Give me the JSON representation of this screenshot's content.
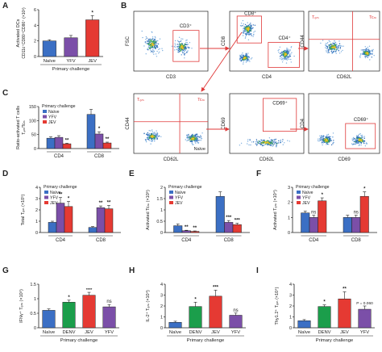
{
  "colors": {
    "naive": "#3b6fc4",
    "yfv": "#7b4fa8",
    "jev": "#e53a33",
    "denv": "#1b9e4b",
    "gate": "#e03a3a",
    "arrow": "#e03a3a"
  },
  "chart_data": [
    {
      "panel": "A",
      "type": "bar",
      "ylabel": "Activated DCs",
      "ylabel2": "CD11c⁺CD80⁺CD86⁺ (×10³)",
      "xlabel": "Primary challenge",
      "categories": [
        "Naïve",
        "YFV",
        "JEV"
      ],
      "values": [
        2.0,
        2.4,
        4.7
      ],
      "errors": [
        0.15,
        0.3,
        0.55
      ],
      "colors": [
        "#3b6fc4",
        "#7b4fa8",
        "#e53a33"
      ],
      "significance": [
        "",
        "",
        "*"
      ],
      "ylim": [
        0,
        6
      ],
      "yticks": [
        0,
        2,
        4,
        6
      ]
    },
    {
      "panel": "C",
      "type": "bar",
      "ylabel": "Ratio-activated T cells",
      "ylabel2": "Tₑₘ/Tcₘ",
      "legend_title": "Primary challenge",
      "legend_labels": [
        "Naïve",
        "YFV",
        "JEV"
      ],
      "categories": [
        "CD4",
        "CD8"
      ],
      "series": [
        {
          "name": "Naïve",
          "values": [
            37,
            122
          ],
          "errors": [
            5,
            18
          ]
        },
        {
          "name": "YFV",
          "values": [
            40,
            52
          ],
          "errors": [
            6,
            8
          ]
        },
        {
          "name": "JEV",
          "values": [
            17,
            20
          ],
          "errors": [
            2,
            3
          ]
        }
      ],
      "significance": [
        [
          "",
          "",
          "**"
        ],
        [
          "",
          "*",
          "**"
        ]
      ],
      "ylim": [
        0,
        150
      ],
      "yticks": [
        0,
        50,
        100,
        150
      ]
    },
    {
      "panel": "D",
      "type": "bar",
      "ylabel": "Total Tₑₘ (×10⁵)",
      "legend_title": "Primary challenge",
      "legend_labels": [
        "Naïve",
        "YFV",
        "JEV"
      ],
      "categories": [
        "CD4",
        "CD8"
      ],
      "series": [
        {
          "name": "Naïve",
          "values": [
            0.9,
            0.45
          ],
          "errors": [
            0.1,
            0.08
          ]
        },
        {
          "name": "YFV",
          "values": [
            2.6,
            2.2
          ],
          "errors": [
            0.5,
            0.15
          ]
        },
        {
          "name": "JEV",
          "values": [
            2.3,
            2.1
          ],
          "errors": [
            0.45,
            0.3
          ]
        }
      ],
      "significance": [
        [
          "",
          "**",
          "*"
        ],
        [
          "",
          "**",
          "**"
        ]
      ],
      "ylim": [
        0,
        4
      ],
      "yticks": [
        0,
        1,
        2,
        3,
        4
      ]
    },
    {
      "panel": "E",
      "type": "bar",
      "ylabel": "Activated Tcₘ (×10⁵)",
      "legend_title": "Primary challenge",
      "legend_labels": [
        "Naïve",
        "YFV",
        "JEV"
      ],
      "categories": [
        "CD4",
        "CD8"
      ],
      "series": [
        {
          "name": "Naïve",
          "values": [
            0.3,
            1.6
          ],
          "errors": [
            0.08,
            0.2
          ]
        },
        {
          "name": "YFV",
          "values": [
            0.08,
            0.45
          ],
          "errors": [
            0.02,
            0.08
          ]
        },
        {
          "name": "JEV",
          "values": [
            0.05,
            0.35
          ],
          "errors": [
            0.02,
            0.06
          ]
        }
      ],
      "significance": [
        [
          "",
          "**",
          "**"
        ],
        [
          "",
          "***",
          "***"
        ]
      ],
      "ylim": [
        0,
        2
      ],
      "yticks": [
        0,
        0.5,
        1.0,
        1.5,
        2.0
      ]
    },
    {
      "panel": "F",
      "type": "bar",
      "ylabel": "Activated Tₑₘ (×10⁴)",
      "legend_title": "Primary challenge",
      "legend_labels": [
        "Naïve",
        "YFV",
        "JEV"
      ],
      "categories": [
        "CD4",
        "CD8"
      ],
      "series": [
        {
          "name": "Naïve",
          "values": [
            1.3,
            1.0
          ],
          "errors": [
            0.12,
            0.15
          ]
        },
        {
          "name": "YFV",
          "values": [
            1.0,
            1.0
          ],
          "errors": [
            0.15,
            0.15
          ]
        },
        {
          "name": "JEV",
          "values": [
            2.1,
            2.4
          ],
          "errors": [
            0.2,
            0.3
          ]
        }
      ],
      "significance": [
        [
          "",
          "ns",
          "*"
        ],
        [
          "",
          "ns",
          "*"
        ]
      ],
      "ylim": [
        0,
        3
      ],
      "yticks": [
        0,
        1,
        2,
        3
      ]
    },
    {
      "panel": "G",
      "type": "bar",
      "ylabel": "IFNγ⁺ Tₑₘ (×10⁵)",
      "xlabel": "Primary challenge",
      "categories": [
        "Naïve",
        "DENV",
        "JEV",
        "YFV"
      ],
      "values": [
        0.6,
        0.88,
        1.12,
        0.72
      ],
      "errors": [
        0.05,
        0.07,
        0.1,
        0.08
      ],
      "colors": [
        "#3b6fc4",
        "#1b9e4b",
        "#e53a33",
        "#7b4fa8"
      ],
      "significance": [
        "",
        "*",
        "****",
        "ns"
      ],
      "ylim": [
        0,
        1.5
      ],
      "yticks": [
        0,
        0.5,
        1.0,
        1.5
      ]
    },
    {
      "panel": "H",
      "type": "bar",
      "ylabel": "IL-2⁺ Tₑₘ (×10⁴)",
      "xlabel": "Primary challenge",
      "categories": [
        "Naïve",
        "DENV",
        "JEV",
        "YFV"
      ],
      "values": [
        0.5,
        1.95,
        2.9,
        1.15
      ],
      "errors": [
        0.1,
        0.4,
        0.55,
        0.2
      ],
      "colors": [
        "#3b6fc4",
        "#1b9e4b",
        "#e53a33",
        "#7b4fa8"
      ],
      "significance": [
        "",
        "*",
        "***",
        "ns"
      ],
      "ylim": [
        0,
        4
      ],
      "yticks": [
        0,
        1,
        2,
        3,
        4
      ]
    },
    {
      "panel": "I",
      "type": "bar",
      "ylabel": "Thy1.2⁺ Tₑₘ (×10⁴)",
      "xlabel": "Primary challenge",
      "categories": [
        "Naïve",
        "DENV",
        "JEV",
        "YFV"
      ],
      "values": [
        0.65,
        1.95,
        2.65,
        1.7
      ],
      "errors": [
        0.1,
        0.15,
        0.65,
        0.3
      ],
      "colors": [
        "#3b6fc4",
        "#1b9e4b",
        "#e53a33",
        "#7b4fa8"
      ],
      "significance": [
        "",
        "*",
        "**",
        "P = 0.060"
      ],
      "ylim": [
        0,
        4
      ],
      "yticks": [
        0,
        1,
        2,
        3,
        4
      ]
    }
  ],
  "flow_panel": {
    "label": "B",
    "plots": [
      {
        "xlabel": "CD3",
        "ylabel": "FSC",
        "gates": [
          {
            "label": "CD3⁺"
          }
        ]
      },
      {
        "xlabel": "CD4",
        "ylabel": "CD8",
        "gates": [
          {
            "label": "CD8⁺"
          },
          {
            "label": "CD4⁺"
          }
        ]
      },
      {
        "xlabel": "CD62L",
        "ylabel": "CD44",
        "quadrants": [
          "Tₑₘ",
          "Tcₘ"
        ]
      },
      {
        "xlabel": "CD62L",
        "ylabel": "CD44",
        "quadrants": [
          "Tₑₘ",
          "Tcₘ",
          "Naïve"
        ]
      },
      {
        "xlabel": "CD62L",
        "ylabel": "CD69",
        "gates": [
          {
            "label": "CD69⁺"
          }
        ]
      },
      {
        "xlabel": "CD69",
        "ylabel": "CD4",
        "gates": [
          {
            "label": "CD69⁺"
          }
        ]
      }
    ]
  }
}
